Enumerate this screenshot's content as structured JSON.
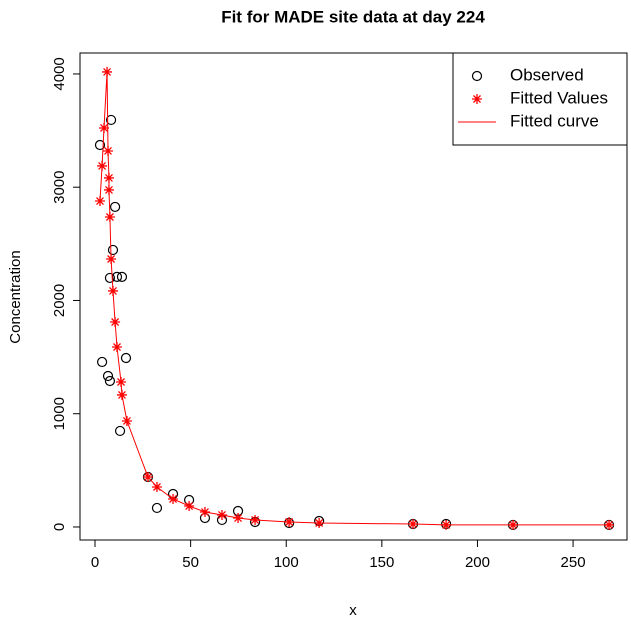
{
  "chart_data": {
    "type": "scatter",
    "title": "Fit for MADE site data at day 224",
    "xlabel": "x",
    "ylabel": "Concentration",
    "xlim": [
      -7.85,
      278.2
    ],
    "ylim": [
      -115,
      4185
    ],
    "xticks": [
      0,
      50,
      100,
      150,
      200,
      250
    ],
    "yticks": [
      0,
      1000,
      2000,
      3000,
      4000
    ],
    "legend": "topright",
    "series": [
      {
        "name": "Observed",
        "marker": "circle",
        "color": "#000000",
        "x": [
          2.6,
          3.7,
          6.8,
          7.8,
          8.4,
          7.8,
          9.4,
          10.5,
          11.5,
          14.1,
          13.1,
          16.2,
          27.7,
          32.4,
          40.8,
          49.2,
          57.5,
          66.4,
          74.8,
          83.7,
          101.5,
          117.2,
          166.3,
          183.6,
          218.6,
          268.8
        ],
        "y": [
          3373,
          1457,
          1333,
          1289,
          3594,
          2199,
          2446,
          2826,
          2208,
          2208,
          848,
          1492,
          441,
          168,
          291,
          238,
          79,
          62,
          141,
          44,
          35,
          53,
          26,
          26,
          18,
          18
        ]
      },
      {
        "name": "Fitted Values",
        "marker": "asterisk",
        "color": "#ff0000",
        "x": [
          2.6,
          3.7,
          4.7,
          6.3,
          6.8,
          7.3,
          7.3,
          7.8,
          8.4,
          9.4,
          10.5,
          11.5,
          13.6,
          14.1,
          16.7,
          27.7,
          32.4,
          40.8,
          49.2,
          57.5,
          66.4,
          74.8,
          83.7,
          101.5,
          117.2,
          166.3,
          183.6,
          218.6,
          268.8
        ],
        "y": [
          2878,
          3188,
          3523,
          4018,
          3320,
          3082,
          2976,
          2737,
          2366,
          2084,
          1810,
          1589,
          1280,
          1166,
          936,
          441,
          353,
          247,
          185,
          132,
          106,
          79,
          62,
          44,
          35,
          26,
          18,
          18,
          18
        ]
      },
      {
        "name": "Fitted curve",
        "marker": "line",
        "color": "#ff0000",
        "x": [
          2.6,
          3.7,
          4.7,
          6.3,
          6.8,
          7.3,
          7.3,
          7.8,
          8.4,
          9.4,
          10.5,
          11.5,
          13.6,
          14.1,
          16.7,
          27.7,
          32.4,
          40.8,
          49.2,
          57.5,
          66.4,
          74.8,
          83.7,
          101.5,
          117.2,
          166.3,
          183.6,
          218.6,
          268.8
        ],
        "y": [
          2878,
          3188,
          3523,
          4018,
          3320,
          3082,
          2976,
          2737,
          2366,
          2084,
          1810,
          1589,
          1280,
          1166,
          936,
          441,
          353,
          247,
          185,
          132,
          106,
          79,
          62,
          44,
          35,
          26,
          18,
          18,
          18
        ]
      }
    ]
  }
}
